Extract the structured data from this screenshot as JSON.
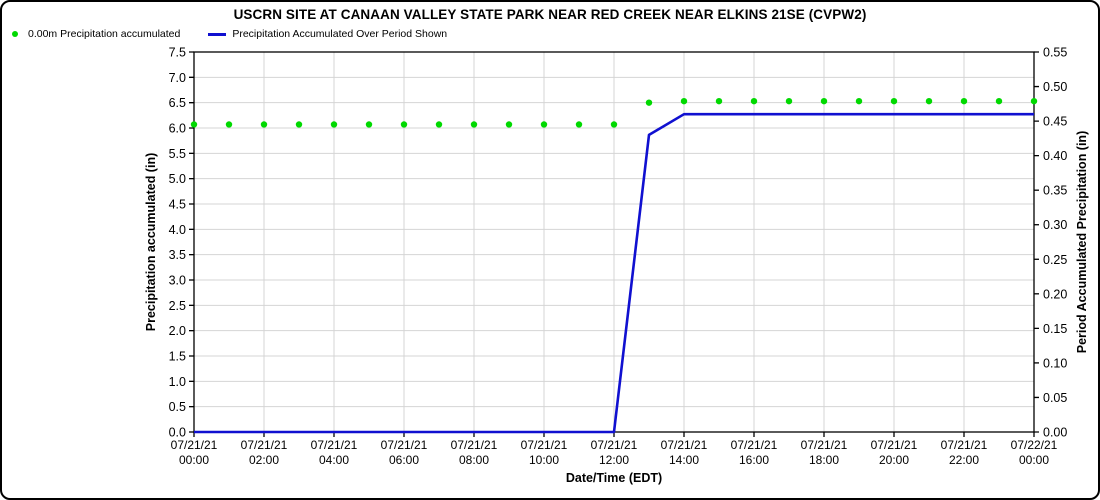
{
  "title": "USCRN SITE AT CANAAN VALLEY STATE PARK NEAR RED CREEK NEAR ELKINS 21SE (CVPW2)",
  "legend": {
    "items": [
      {
        "label": "0.00m Precipitation accumulated",
        "marker": "dot",
        "color": "#00d900"
      },
      {
        "label": "Precipitation Accumulated Over Period Shown",
        "marker": "line",
        "color": "#1010d0"
      }
    ]
  },
  "colors": {
    "green_series": "#00d900",
    "blue_series": "#1010d0",
    "grid": "#d4d4d4",
    "axis": "#000000",
    "background": "#ffffff"
  },
  "chart_data": {
    "type": "line",
    "title": "USCRN SITE AT CANAAN VALLEY STATE PARK NEAR RED CREEK NEAR ELKINS 21SE (CVPW2)",
    "xlabel": "Date/Time (EDT)",
    "grid": true,
    "legend_position": "top-left",
    "x_hours": [
      0,
      1,
      2,
      3,
      4,
      5,
      6,
      7,
      8,
      9,
      10,
      11,
      12,
      13,
      14,
      15,
      16,
      17,
      18,
      19,
      20,
      21,
      22,
      23,
      24
    ],
    "x_tick_hours": [
      0,
      2,
      4,
      6,
      8,
      10,
      12,
      14,
      16,
      18,
      20,
      22,
      24
    ],
    "x_tick_labels": [
      [
        "07/21/21",
        "00:00"
      ],
      [
        "07/21/21",
        "02:00"
      ],
      [
        "07/21/21",
        "04:00"
      ],
      [
        "07/21/21",
        "06:00"
      ],
      [
        "07/21/21",
        "08:00"
      ],
      [
        "07/21/21",
        "10:00"
      ],
      [
        "07/21/21",
        "12:00"
      ],
      [
        "07/21/21",
        "14:00"
      ],
      [
        "07/21/21",
        "16:00"
      ],
      [
        "07/21/21",
        "18:00"
      ],
      [
        "07/21/21",
        "20:00"
      ],
      [
        "07/21/21",
        "22:00"
      ],
      [
        "07/22/21",
        "00:00"
      ]
    ],
    "left_axis": {
      "label": "Precipitation accumulated (in)",
      "min": 0,
      "max": 7.5,
      "step": 0.5,
      "decimals": 1
    },
    "right_axis": {
      "label": "Period Accumulated Precipitation (in)",
      "min": 0,
      "max": 0.55,
      "step": 0.05,
      "decimals": 2
    },
    "series": [
      {
        "name": "0.00m Precipitation accumulated",
        "style": "scatter",
        "axis": "left",
        "color": "#00d900",
        "values": [
          6.07,
          6.07,
          6.07,
          6.07,
          6.07,
          6.07,
          6.07,
          6.07,
          6.07,
          6.07,
          6.07,
          6.07,
          6.07,
          6.5,
          6.53,
          6.53,
          6.53,
          6.53,
          6.53,
          6.53,
          6.53,
          6.53,
          6.53,
          6.53,
          6.53
        ]
      },
      {
        "name": "Precipitation Accumulated Over Period Shown",
        "style": "line",
        "axis": "right",
        "color": "#1010d0",
        "values": [
          0.0,
          0.0,
          0.0,
          0.0,
          0.0,
          0.0,
          0.0,
          0.0,
          0.0,
          0.0,
          0.0,
          0.0,
          0.0,
          0.43,
          0.46,
          0.46,
          0.46,
          0.46,
          0.46,
          0.46,
          0.46,
          0.46,
          0.46,
          0.46,
          0.46
        ]
      }
    ]
  }
}
